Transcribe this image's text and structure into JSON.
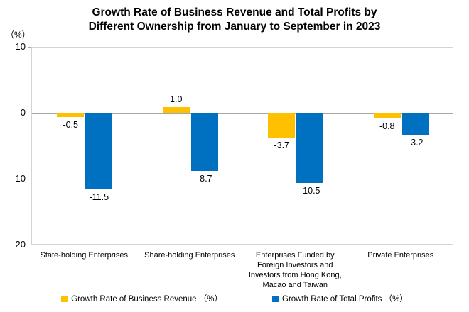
{
  "chart_data": {
    "type": "bar",
    "title_lines": [
      "Growth Rate of Business Revenue and Total Profits by",
      "Different Ownership from January to September in 2023"
    ],
    "title": "Growth Rate of Business Revenue and Total Profits by Different Ownership from January to September in 2023",
    "y_axis_unit": "（%）",
    "ylim": [
      -20,
      10
    ],
    "yticks": [
      10,
      0,
      -10,
      -20
    ],
    "grid": "off",
    "legend_position": "bottom",
    "categories": [
      "State-holding Enterprises",
      "Share-holding Enterprises",
      "Enterprises Funded by\nForeign Investors and\nInvestors from Hong Kong,\nMacao and Taiwan",
      "Private Enterprises"
    ],
    "series": [
      {
        "name": "Growth Rate of Business Revenue （%）",
        "color": "#FFC000",
        "values": [
          -0.5,
          1.0,
          -3.7,
          -0.8
        ]
      },
      {
        "name": "Growth Rate of Total Profits （%）",
        "color": "#0070C0",
        "values": [
          -11.5,
          -8.7,
          -10.5,
          -3.2
        ]
      }
    ]
  }
}
